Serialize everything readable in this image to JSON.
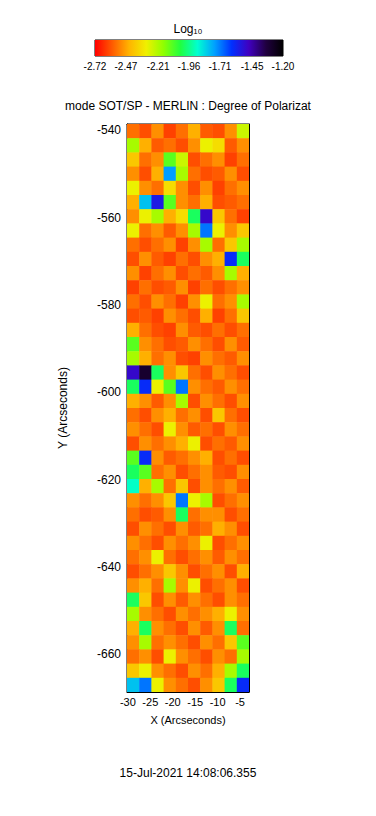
{
  "chart_data": {
    "type": "heatmap",
    "title": "mode SOT/SP - MERLIN : Degree of Polarizat",
    "x_label": "X (Arcseconds)",
    "y_label": "Y (Arcseconds)",
    "xlim": [
      -30.2,
      -3.0
    ],
    "ylim": [
      -668.6,
      -538.6
    ],
    "xticks": [
      -30,
      -25,
      -20,
      -15,
      -10,
      -5
    ],
    "yticks": [
      -660,
      -640,
      -620,
      -600,
      -580,
      -560,
      -540
    ],
    "x_edges": [
      -30.2,
      -27.48,
      -24.76,
      -22.04,
      -19.32,
      -16.6,
      -13.88,
      -11.16,
      -8.44,
      -5.72,
      -3.0
    ],
    "y_edges": [
      -538.6,
      -541.85,
      -545.1,
      -548.35,
      -551.6,
      -554.85,
      -558.1,
      -561.35,
      -564.6,
      -567.85,
      -571.1,
      -574.35,
      -577.6,
      -580.85,
      -584.1,
      -587.35,
      -590.6,
      -593.85,
      -597.1,
      -600.35,
      -603.6,
      -606.85,
      -610.1,
      -613.35,
      -616.6,
      -619.85,
      -623.1,
      -626.35,
      -629.6,
      -632.85,
      -636.1,
      -639.35,
      -642.6,
      -645.85,
      -649.1,
      -652.35,
      -655.6,
      -658.85,
      -662.1,
      -665.35,
      -668.6
    ],
    "values": [
      [
        -2.55,
        -2.6,
        -2.5,
        -2.62,
        -2.55,
        -2.45,
        -2.58,
        -2.6,
        -2.5,
        -2.25
      ],
      [
        -2.2,
        -2.45,
        -2.58,
        -2.55,
        -2.6,
        -2.5,
        -2.3,
        -2.35,
        -2.58,
        -2.5
      ],
      [
        -2.4,
        -2.55,
        -2.5,
        -2.1,
        -2.25,
        -2.6,
        -2.55,
        -2.5,
        -2.62,
        -2.55
      ],
      [
        -2.5,
        -2.6,
        -2.45,
        -1.75,
        -2.2,
        -2.55,
        -2.6,
        -2.58,
        -2.5,
        -2.6
      ],
      [
        -2.3,
        -2.5,
        -2.55,
        -2.35,
        -2.5,
        -2.6,
        -2.5,
        -2.62,
        -2.55,
        -2.5
      ],
      [
        -2.45,
        -1.8,
        -1.55,
        -2.1,
        -2.5,
        -2.55,
        -2.45,
        -2.6,
        -2.58,
        -2.55
      ],
      [
        -2.5,
        -2.3,
        -2.2,
        -2.45,
        -2.35,
        -2.0,
        -1.5,
        -2.4,
        -2.55,
        -2.62
      ],
      [
        -2.3,
        -2.55,
        -2.5,
        -2.58,
        -2.5,
        -2.2,
        -1.7,
        -2.3,
        -2.5,
        -2.4
      ],
      [
        -2.55,
        -2.6,
        -2.55,
        -2.5,
        -2.62,
        -2.5,
        -2.2,
        -2.55,
        -2.4,
        -2.2
      ],
      [
        -2.6,
        -2.5,
        -2.58,
        -2.62,
        -2.55,
        -2.6,
        -2.5,
        -2.45,
        -1.6,
        -2.0
      ],
      [
        -2.5,
        -2.62,
        -2.55,
        -2.5,
        -2.6,
        -2.55,
        -2.58,
        -2.5,
        -2.2,
        -2.45
      ],
      [
        -2.62,
        -2.55,
        -2.6,
        -2.58,
        -2.5,
        -2.62,
        -2.55,
        -2.6,
        -2.55,
        -2.5
      ],
      [
        -2.55,
        -2.6,
        -2.5,
        -2.55,
        -2.62,
        -2.5,
        -2.3,
        -2.55,
        -2.5,
        -2.2
      ],
      [
        -2.6,
        -2.58,
        -2.62,
        -2.5,
        -2.55,
        -2.6,
        -2.45,
        -2.62,
        -2.55,
        -2.4
      ],
      [
        -2.45,
        -2.55,
        -2.6,
        -2.62,
        -2.5,
        -2.58,
        -2.6,
        -2.55,
        -2.6,
        -2.55
      ],
      [
        -2.1,
        -2.5,
        -2.55,
        -2.6,
        -2.58,
        -2.5,
        -2.55,
        -2.6,
        -2.5,
        -2.58
      ],
      [
        -2.2,
        -2.45,
        -2.55,
        -2.5,
        -2.6,
        -2.62,
        -2.5,
        -2.55,
        -2.58,
        -2.5
      ],
      [
        -1.5,
        -1.3,
        -2.0,
        -2.5,
        -2.4,
        -2.55,
        -2.6,
        -2.5,
        -2.55,
        -2.6
      ],
      [
        -2.0,
        -1.6,
        -2.3,
        -2.1,
        -1.7,
        -2.5,
        -2.55,
        -2.58,
        -2.5,
        -2.55
      ],
      [
        -2.45,
        -2.5,
        -2.58,
        -2.5,
        -2.2,
        -2.6,
        -2.5,
        -2.55,
        -2.6,
        -2.5
      ],
      [
        -2.55,
        -2.6,
        -2.5,
        -2.45,
        -2.55,
        -2.5,
        -2.6,
        -2.4,
        -2.55,
        -2.6
      ],
      [
        -2.5,
        -2.55,
        -2.6,
        -2.3,
        -2.5,
        -2.58,
        -2.55,
        -2.6,
        -2.5,
        -2.55
      ],
      [
        -2.6,
        -2.5,
        -2.55,
        -2.5,
        -2.45,
        -2.3,
        -2.6,
        -2.55,
        -2.58,
        -2.5
      ],
      [
        -2.1,
        -1.6,
        -2.5,
        -2.58,
        -2.55,
        -2.5,
        -2.45,
        -2.6,
        -2.55,
        -2.6
      ],
      [
        -2.0,
        -2.1,
        -2.55,
        -2.5,
        -2.6,
        -2.55,
        -2.5,
        -2.58,
        -2.6,
        -2.5
      ],
      [
        -1.9,
        -2.45,
        -2.2,
        -2.55,
        -2.4,
        -2.6,
        -2.5,
        -2.55,
        -2.5,
        -2.58
      ],
      [
        -2.5,
        -2.55,
        -2.5,
        -2.4,
        -1.7,
        -2.3,
        -2.2,
        -2.6,
        -2.55,
        -2.5
      ],
      [
        -2.55,
        -2.6,
        -2.58,
        -2.5,
        -2.0,
        -2.55,
        -2.5,
        -2.5,
        -2.6,
        -2.55
      ],
      [
        -2.6,
        -2.5,
        -2.55,
        -2.6,
        -2.5,
        -2.58,
        -2.55,
        -2.45,
        -2.5,
        -2.6
      ],
      [
        -2.5,
        -2.55,
        -2.6,
        -2.5,
        -2.55,
        -2.5,
        -2.3,
        -2.6,
        -2.55,
        -2.5
      ],
      [
        -2.55,
        -2.5,
        -2.3,
        -2.55,
        -2.6,
        -2.55,
        -2.5,
        -2.58,
        -2.5,
        -2.55
      ],
      [
        -2.6,
        -2.55,
        -2.5,
        -2.4,
        -2.5,
        -2.6,
        -2.55,
        -2.5,
        -2.6,
        -2.45
      ],
      [
        -2.5,
        -2.45,
        -2.55,
        -2.2,
        -2.5,
        -2.3,
        -2.6,
        -2.55,
        -2.5,
        -2.6
      ],
      [
        -2.0,
        -2.4,
        -2.6,
        -2.5,
        -2.58,
        -2.5,
        -2.55,
        -2.6,
        -2.5,
        -2.55
      ],
      [
        -2.2,
        -2.5,
        -2.55,
        -2.6,
        -2.5,
        -2.55,
        -2.5,
        -2.45,
        -2.3,
        -2.5
      ],
      [
        -2.45,
        -2.0,
        -2.5,
        -2.55,
        -2.6,
        -2.5,
        -2.58,
        -2.5,
        -2.0,
        -2.55
      ],
      [
        -2.5,
        -2.2,
        -2.55,
        -2.5,
        -2.55,
        -2.6,
        -2.5,
        -2.55,
        -2.4,
        -2.1
      ],
      [
        -2.55,
        -2.5,
        -2.6,
        -2.3,
        -2.5,
        -2.55,
        -2.6,
        -2.5,
        -2.55,
        -2.2
      ],
      [
        -2.4,
        -2.3,
        -2.5,
        -2.55,
        -2.6,
        -2.5,
        -2.55,
        -2.45,
        -2.2,
        -2.0
      ],
      [
        -1.8,
        -1.7,
        -2.3,
        -2.5,
        -2.55,
        -2.6,
        -2.5,
        -2.4,
        -2.0,
        -1.6
      ]
    ],
    "colorbar": {
      "label": "Log₁₀",
      "range": [
        -2.72,
        -1.2
      ],
      "ticks": [
        -2.72,
        -2.47,
        -2.21,
        -1.96,
        -1.71,
        -1.45,
        {
          "value": -1.2,
          "label": "-1.20"
        }
      ]
    },
    "annotations": [
      "15-Jul-2021 14:08:06.355"
    ]
  }
}
